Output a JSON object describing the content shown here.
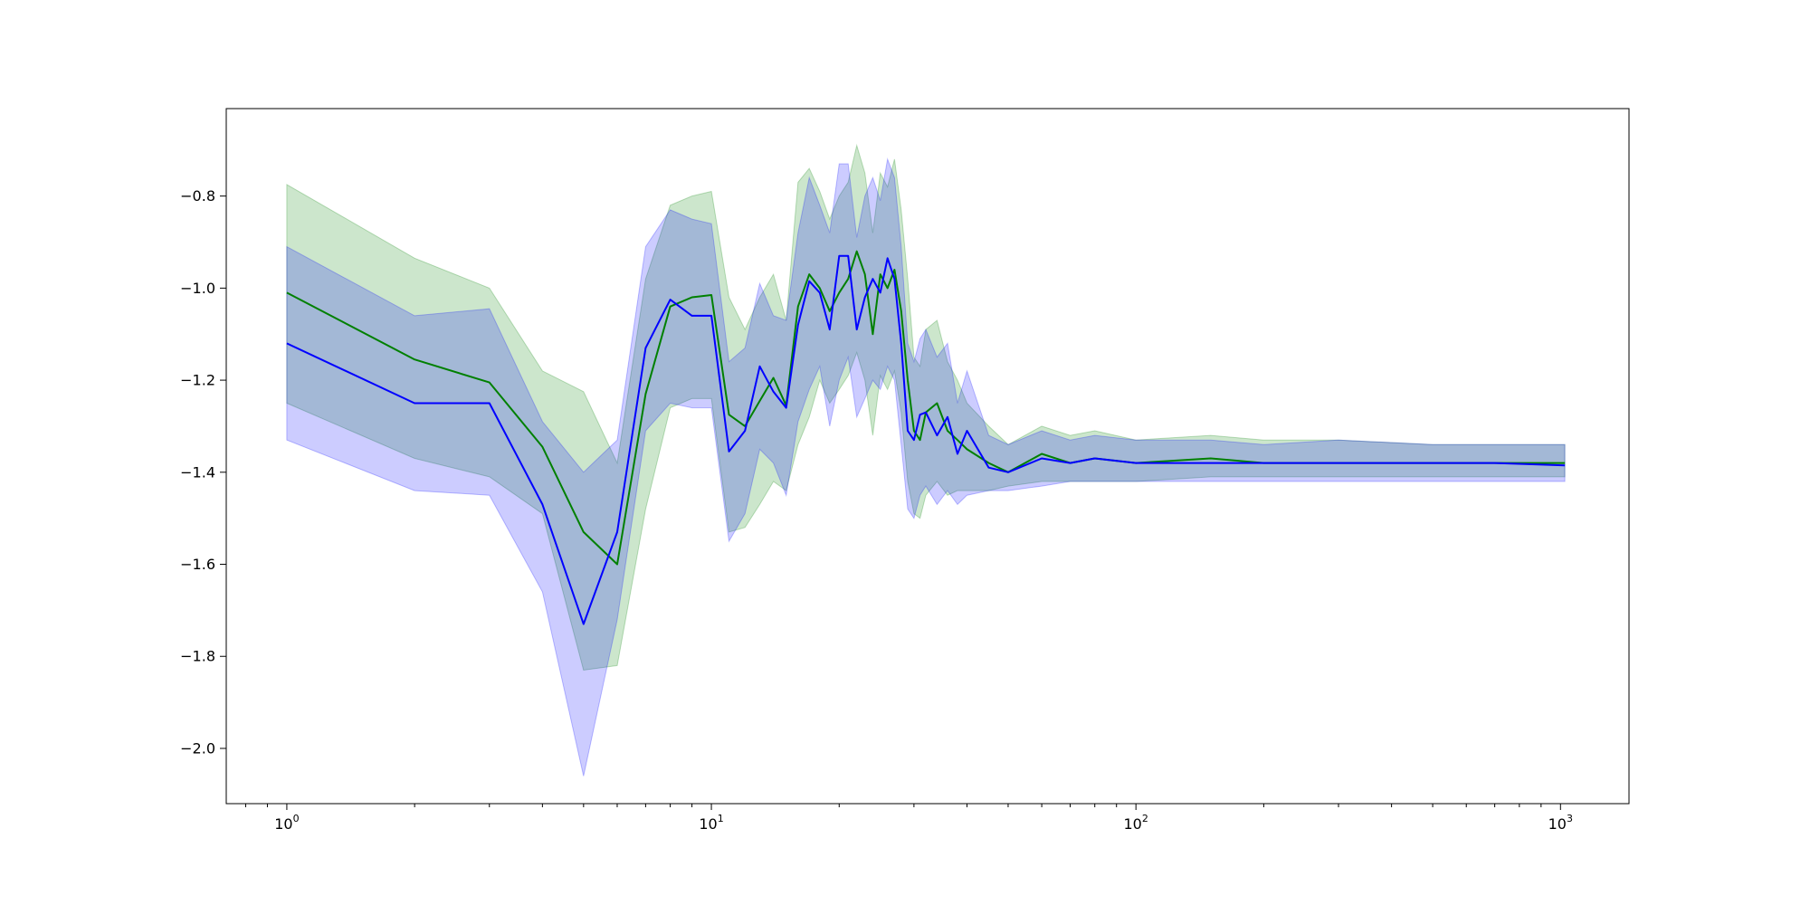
{
  "chart_data": {
    "type": "line",
    "title": "",
    "xlabel": "",
    "ylabel": "",
    "xscale": "log",
    "xlim": [
      0.72,
      1450
    ],
    "ylim": [
      -2.12,
      -0.61
    ],
    "grid": false,
    "legend": "none",
    "x_ticks": [
      {
        "value": 1,
        "base": "10",
        "exp": "0"
      },
      {
        "value": 10,
        "base": "10",
        "exp": "1"
      },
      {
        "value": 100,
        "base": "10",
        "exp": "2"
      },
      {
        "value": 1000,
        "base": "10",
        "exp": "3"
      }
    ],
    "y_ticks": [
      {
        "value": -0.8,
        "label": "−0.8"
      },
      {
        "value": -1.0,
        "label": "−1.0"
      },
      {
        "value": -1.2,
        "label": "−1.2"
      },
      {
        "value": -1.4,
        "label": "−1.4"
      },
      {
        "value": -1.6,
        "label": "−1.6"
      },
      {
        "value": -1.8,
        "label": "−1.8"
      },
      {
        "value": -2.0,
        "label": "−2.0"
      }
    ],
    "series": [
      {
        "color": "#008000",
        "band_color": "#008000",
        "band_opacity": 0.2,
        "x": [
          1,
          2,
          3,
          4,
          5,
          6,
          7,
          8,
          9,
          10,
          11,
          12,
          13,
          14,
          15,
          16,
          17,
          18,
          19,
          20,
          21,
          22,
          23,
          24,
          25,
          26,
          27,
          28,
          29,
          30,
          31,
          32,
          34,
          36,
          38,
          40,
          45,
          50,
          60,
          70,
          80,
          100,
          150,
          200,
          300,
          500,
          700,
          1024
        ],
        "y": [
          -1.01,
          -1.155,
          -1.205,
          -1.345,
          -1.53,
          -1.6,
          -1.23,
          -1.04,
          -1.02,
          -1.015,
          -1.275,
          -1.3,
          -1.245,
          -1.195,
          -1.255,
          -1.04,
          -0.97,
          -1.0,
          -1.05,
          -1.01,
          -0.98,
          -0.92,
          -0.97,
          -1.1,
          -0.97,
          -1.0,
          -0.96,
          -1.05,
          -1.2,
          -1.31,
          -1.33,
          -1.27,
          -1.25,
          -1.31,
          -1.33,
          -1.35,
          -1.38,
          -1.4,
          -1.36,
          -1.38,
          -1.37,
          -1.38,
          -1.37,
          -1.38,
          -1.38,
          -1.38,
          -1.38,
          -1.38
        ],
        "lower": [
          -1.25,
          -1.37,
          -1.41,
          -1.49,
          -1.83,
          -1.82,
          -1.48,
          -1.26,
          -1.24,
          -1.24,
          -1.53,
          -1.52,
          -1.47,
          -1.42,
          -1.44,
          -1.34,
          -1.28,
          -1.2,
          -1.25,
          -1.22,
          -1.19,
          -1.14,
          -1.2,
          -1.32,
          -1.19,
          -1.22,
          -1.18,
          -1.27,
          -1.42,
          -1.49,
          -1.5,
          -1.45,
          -1.42,
          -1.45,
          -1.44,
          -1.44,
          -1.44,
          -1.43,
          -1.42,
          -1.42,
          -1.42,
          -1.42,
          -1.41,
          -1.41,
          -1.41,
          -1.41,
          -1.41,
          -1.41
        ],
        "upper": [
          -0.775,
          -0.935,
          -1.0,
          -1.18,
          -1.225,
          -1.38,
          -0.98,
          -0.82,
          -0.8,
          -0.79,
          -1.02,
          -1.09,
          -1.02,
          -0.97,
          -1.07,
          -0.77,
          -0.74,
          -0.79,
          -0.85,
          -0.8,
          -0.77,
          -0.69,
          -0.75,
          -0.88,
          -0.75,
          -0.78,
          -0.72,
          -0.83,
          -0.98,
          -1.15,
          -1.17,
          -1.09,
          -1.07,
          -1.16,
          -1.2,
          -1.25,
          -1.3,
          -1.34,
          -1.3,
          -1.32,
          -1.31,
          -1.33,
          -1.32,
          -1.33,
          -1.33,
          -1.34,
          -1.34,
          -1.34
        ]
      },
      {
        "color": "#0000ff",
        "band_color": "#0000ff",
        "band_opacity": 0.2,
        "x": [
          1,
          2,
          3,
          4,
          5,
          6,
          7,
          8,
          9,
          10,
          11,
          12,
          13,
          14,
          15,
          16,
          17,
          18,
          19,
          20,
          21,
          22,
          23,
          24,
          25,
          26,
          27,
          28,
          29,
          30,
          31,
          32,
          34,
          36,
          38,
          40,
          45,
          50,
          60,
          70,
          80,
          100,
          150,
          200,
          300,
          500,
          700,
          1024
        ],
        "y": [
          -1.12,
          -1.25,
          -1.25,
          -1.47,
          -1.73,
          -1.53,
          -1.13,
          -1.025,
          -1.06,
          -1.06,
          -1.355,
          -1.31,
          -1.17,
          -1.225,
          -1.26,
          -1.08,
          -0.985,
          -1.01,
          -1.09,
          -0.93,
          -0.93,
          -1.09,
          -1.02,
          -0.98,
          -1.01,
          -0.935,
          -0.98,
          -1.12,
          -1.31,
          -1.33,
          -1.275,
          -1.27,
          -1.32,
          -1.28,
          -1.36,
          -1.31,
          -1.39,
          -1.4,
          -1.37,
          -1.38,
          -1.37,
          -1.38,
          -1.38,
          -1.38,
          -1.38,
          -1.38,
          -1.38,
          -1.385
        ],
        "lower": [
          -1.33,
          -1.44,
          -1.45,
          -1.66,
          -2.06,
          -1.72,
          -1.31,
          -1.25,
          -1.26,
          -1.26,
          -1.55,
          -1.49,
          -1.35,
          -1.38,
          -1.45,
          -1.29,
          -1.22,
          -1.17,
          -1.3,
          -1.2,
          -1.15,
          -1.28,
          -1.24,
          -1.2,
          -1.22,
          -1.17,
          -1.2,
          -1.34,
          -1.48,
          -1.5,
          -1.45,
          -1.43,
          -1.47,
          -1.44,
          -1.47,
          -1.45,
          -1.44,
          -1.44,
          -1.43,
          -1.42,
          -1.42,
          -1.42,
          -1.42,
          -1.42,
          -1.42,
          -1.42,
          -1.42,
          -1.42
        ],
        "upper": [
          -0.91,
          -1.06,
          -1.045,
          -1.29,
          -1.4,
          -1.33,
          -0.91,
          -0.83,
          -0.85,
          -0.86,
          -1.16,
          -1.13,
          -0.99,
          -1.06,
          -1.07,
          -0.88,
          -0.76,
          -0.82,
          -0.88,
          -0.73,
          -0.73,
          -0.89,
          -0.8,
          -0.76,
          -0.81,
          -0.72,
          -0.76,
          -0.91,
          -1.12,
          -1.16,
          -1.11,
          -1.09,
          -1.15,
          -1.12,
          -1.25,
          -1.18,
          -1.32,
          -1.34,
          -1.31,
          -1.33,
          -1.32,
          -1.33,
          -1.33,
          -1.34,
          -1.33,
          -1.34,
          -1.34,
          -1.34
        ]
      }
    ]
  }
}
